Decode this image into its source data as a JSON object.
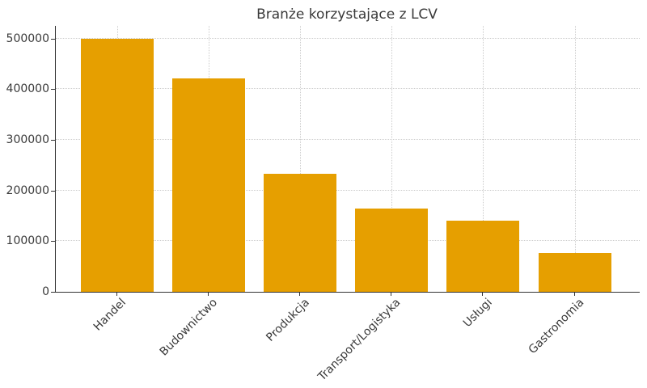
{
  "chart_data": {
    "type": "bar",
    "title": "Branże korzystające z LCV",
    "categories": [
      "Handel",
      "Budownictwo",
      "Produkcja",
      "Transport/Logistyka",
      "Usługi",
      "Gastronomia"
    ],
    "values": [
      500000,
      421000,
      233000,
      165000,
      140000,
      76000
    ],
    "xlabel": "",
    "ylabel": "",
    "ylim": [
      0,
      525000
    ],
    "yticks": [
      0,
      100000,
      200000,
      300000,
      400000,
      500000
    ],
    "ytick_labels": [
      "0",
      "100000",
      "200000",
      "300000",
      "400000",
      "500000"
    ],
    "legend_position": "none",
    "x_tick_rotation_deg": 45,
    "grid": {
      "horizontal": true,
      "vertical": true,
      "style": "dotted",
      "color": "#cccccc"
    },
    "colors": {
      "bar": "#E69F00",
      "axis": "#333333",
      "title_text": "#3a3a3a",
      "tick_text": "#3a3a3a",
      "background": "#ffffff"
    }
  }
}
